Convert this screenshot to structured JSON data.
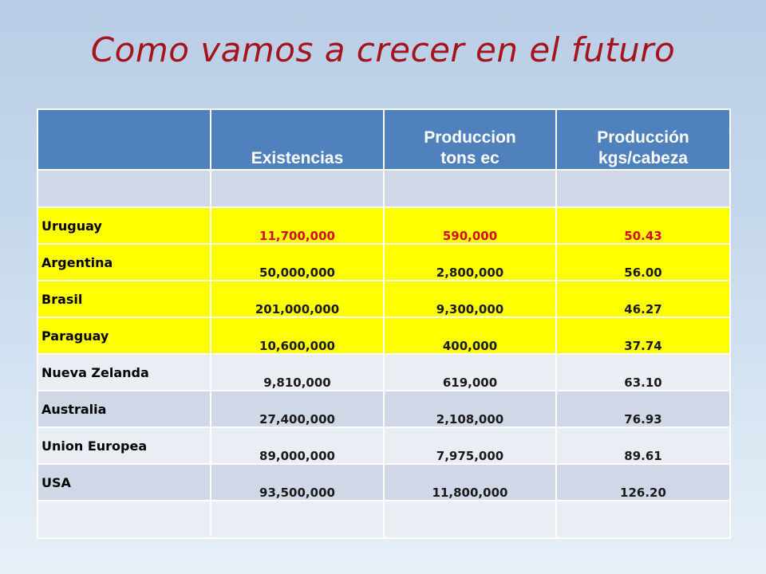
{
  "slide": {
    "title": "Como vamos a crecer en el futuro"
  },
  "table": {
    "headers": [
      "",
      "Existencias",
      "Produccion tons ec",
      "Producción kgs/cabeza"
    ],
    "rows": [
      {
        "country": "Uruguay",
        "existencias": "11,700,000",
        "produccion": "590,000",
        "kgs_cabeza": "50.43"
      },
      {
        "country": "Argentina",
        "existencias": "50,000,000",
        "produccion": "2,800,000",
        "kgs_cabeza": "56.00"
      },
      {
        "country": "Brasil",
        "existencias": "201,000,000",
        "produccion": "9,300,000",
        "kgs_cabeza": "46.27"
      },
      {
        "country": "Paraguay",
        "existencias": "10,600,000",
        "produccion": "400,000",
        "kgs_cabeza": "37.74"
      },
      {
        "country": "Nueva Zelanda",
        "existencias": "9,810,000",
        "produccion": "619,000",
        "kgs_cabeza": "63.10"
      },
      {
        "country": "Australia",
        "existencias": "27,400,000",
        "produccion": "2,108,000",
        "kgs_cabeza": "76.93"
      },
      {
        "country": "Union Europea",
        "existencias": "89,000,000",
        "produccion": "7,975,000",
        "kgs_cabeza": "89.61"
      },
      {
        "country": "USA",
        "existencias": "93,500,000",
        "produccion": "11,800,000",
        "kgs_cabeza": "126.20"
      }
    ]
  },
  "colors": {
    "title": "#a3141b",
    "header_bg": "#4f81bd",
    "highlight": "#ffff00",
    "highlight_text_first_row": "#d0101a",
    "band_dark": "#d0d8e8",
    "band_light": "#e9edf4"
  }
}
